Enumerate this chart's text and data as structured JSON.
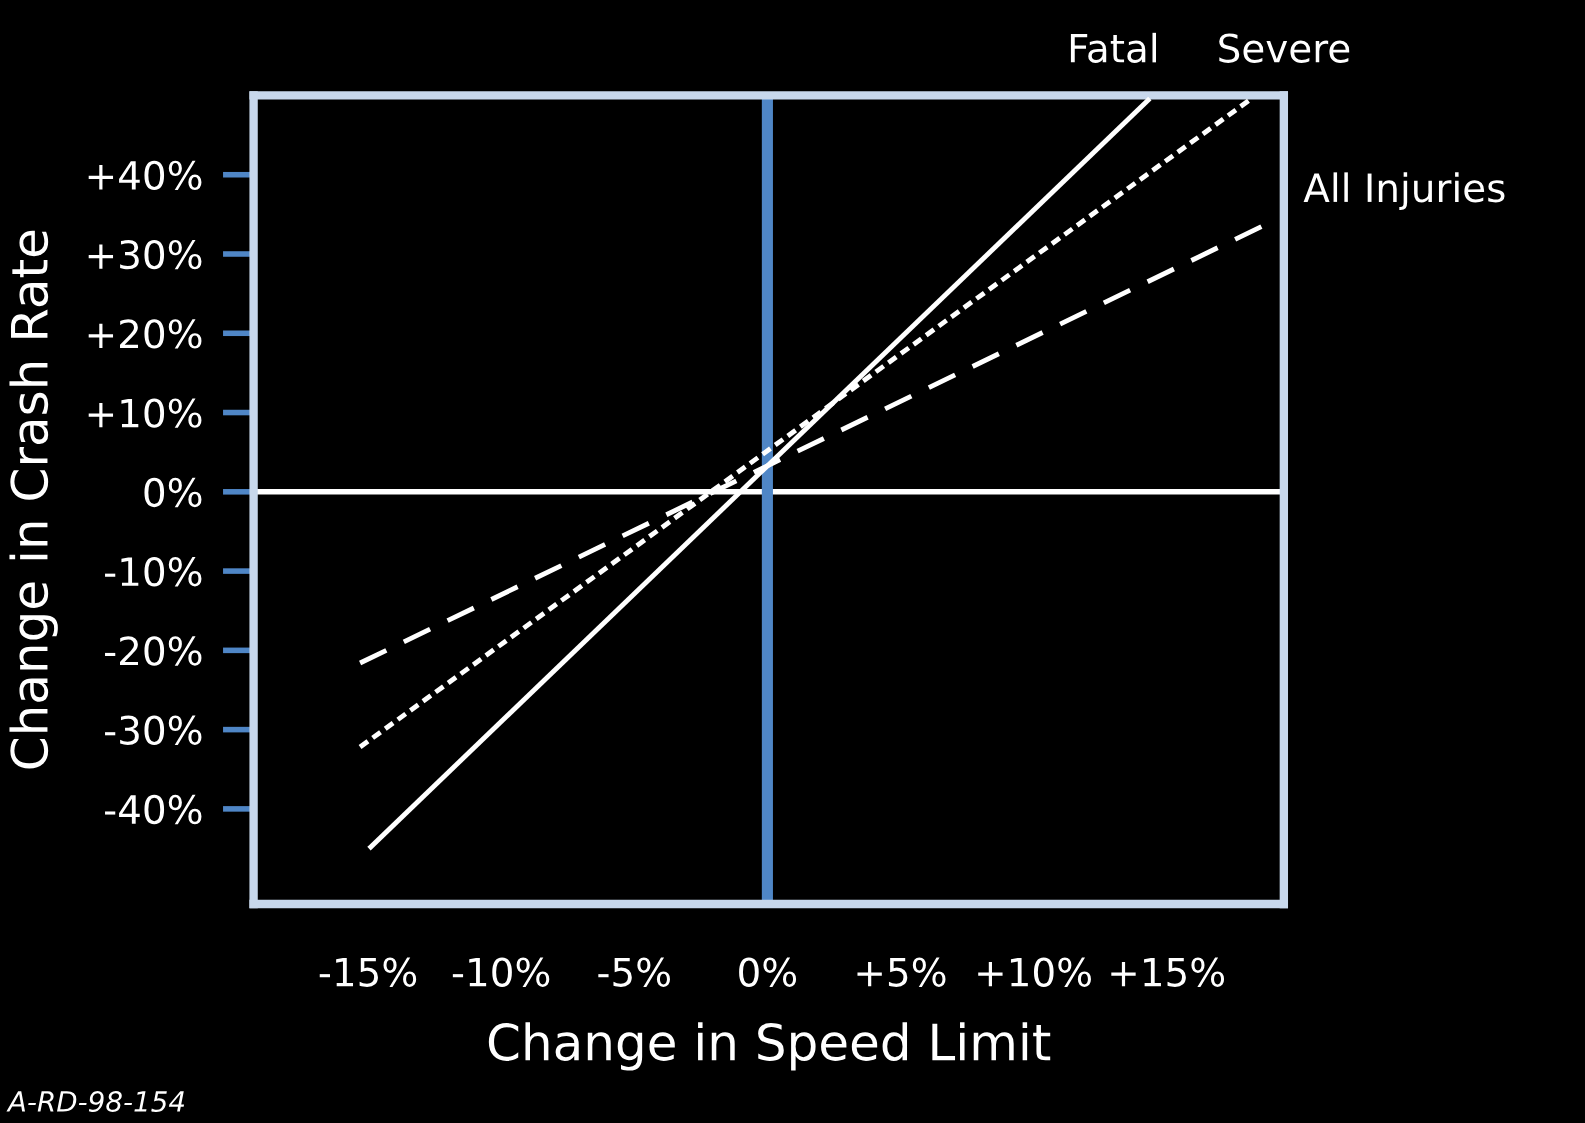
{
  "chart_data": {
    "type": "line",
    "xlabel": "Change in Speed Limit",
    "ylabel": "Change in Crash Rate",
    "xlim": [
      -19.3,
      19.4
    ],
    "ylim": [
      -52,
      50
    ],
    "xticks": [
      {
        "value": -15,
        "label": "-15%"
      },
      {
        "value": -10,
        "label": "-10%"
      },
      {
        "value": -5,
        "label": "-5%"
      },
      {
        "value": 0,
        "label": "0%"
      },
      {
        "value": 5,
        "label": "+5%"
      },
      {
        "value": 10,
        "label": "+10%"
      },
      {
        "value": 15,
        "label": "+15%"
      }
    ],
    "yticks": [
      {
        "value": -40,
        "label": "-40%"
      },
      {
        "value": -30,
        "label": "-30%"
      },
      {
        "value": -20,
        "label": "-20%"
      },
      {
        "value": -10,
        "label": "-10%"
      },
      {
        "value": 0,
        "label": "0%"
      },
      {
        "value": 10,
        "label": "+10%"
      },
      {
        "value": 20,
        "label": "+20%"
      },
      {
        "value": 30,
        "label": "+30%"
      },
      {
        "value": 40,
        "label": "+40%"
      }
    ],
    "series": [
      {
        "name": "Fatal",
        "color": "#ffffff",
        "line_style": "solid",
        "x": [
          -14.9,
          14.3
        ],
        "values": [
          -44.8,
          49.4
        ]
      },
      {
        "name": "Severe",
        "color": "#ffffff",
        "line_style": "dotted",
        "x": [
          -15.3,
          18.1
        ],
        "values": [
          -32.2,
          49.4
        ]
      },
      {
        "name": "All Injuries",
        "color": "#ffffff",
        "line_style": "dashed",
        "x": [
          -15.3,
          19.2
        ],
        "values": [
          -21.6,
          34.5
        ]
      }
    ],
    "ref_lines": [
      {
        "axis": "y",
        "value": 0,
        "color": "#ffffff"
      },
      {
        "axis": "x",
        "value": 0,
        "color": "#4f86c6"
      }
    ],
    "grid": false,
    "legend": false,
    "marker": "none",
    "annotations": [
      "A-RD-98-154"
    ]
  }
}
